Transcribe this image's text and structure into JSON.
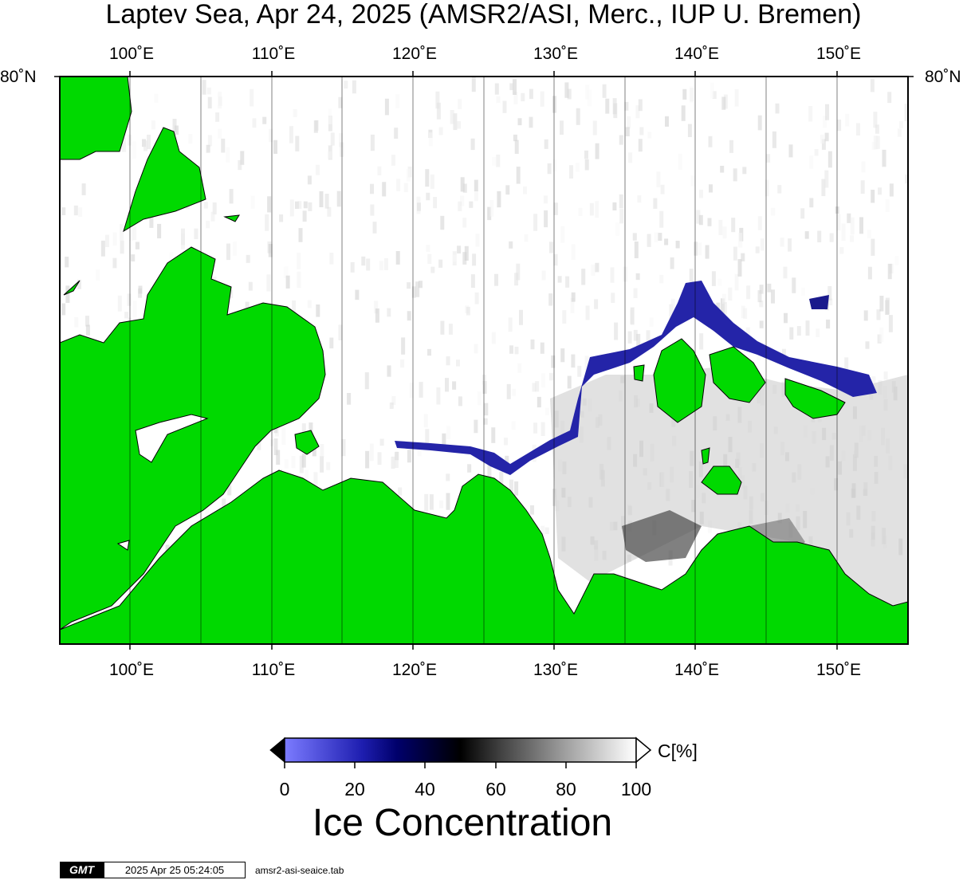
{
  "title": "Laptev Sea, Apr 24, 2025 (AMSR2/ASI, Merc., IUP U. Bremen)",
  "map": {
    "lon_ticks": [
      "100˚E",
      "110˚E",
      "120˚E",
      "130˚E",
      "140˚E",
      "150˚E"
    ],
    "lat_label_left": "80˚N",
    "lat_label_right": "80˚N",
    "land_color": "#00d900",
    "ocean_color": "#ffffff",
    "marginal_ice_color": "#1a1a8c"
  },
  "colorbar": {
    "ticks": [
      "0",
      "20",
      "40",
      "60",
      "80",
      "100"
    ],
    "unit": "C[%]",
    "stops": [
      "#7b7bff",
      "#00006b",
      "#000000",
      "#6e6e6e",
      "#ffffff"
    ]
  },
  "legend_title": "Ice Concentration",
  "stamp": {
    "logo": "GMT",
    "timestamp": "2025 Apr 25 05:24:05",
    "file": "amsr2-asi-seaice.tab"
  }
}
